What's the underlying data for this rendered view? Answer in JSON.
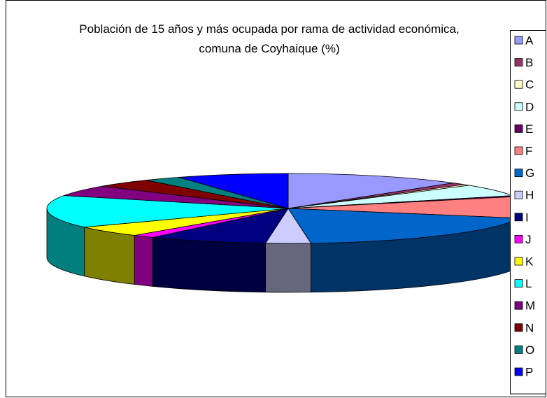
{
  "chart_data": {
    "type": "pie3d",
    "title": "Población de 15 años y más ocupada por rama de actividad económica, comuna de Coyhaique (%)",
    "categories": [
      "A",
      "B",
      "C",
      "D",
      "E",
      "F",
      "G",
      "H",
      "I",
      "J",
      "K",
      "L",
      "M",
      "N",
      "O",
      "P"
    ],
    "values": [
      12,
      1,
      0.5,
      5.5,
      0.5,
      10,
      19,
      3,
      8,
      1.5,
      5,
      15,
      5,
      4,
      2.5,
      7.5
    ],
    "colors": [
      "#9999ff",
      "#993366",
      "#ffffcc",
      "#ccffff",
      "#660066",
      "#ff8080",
      "#0066cc",
      "#ccccff",
      "#000080",
      "#ff00ff",
      "#ffff00",
      "#00ffff",
      "#800080",
      "#800000",
      "#008080",
      "#0000ff"
    ],
    "legend": "right"
  }
}
